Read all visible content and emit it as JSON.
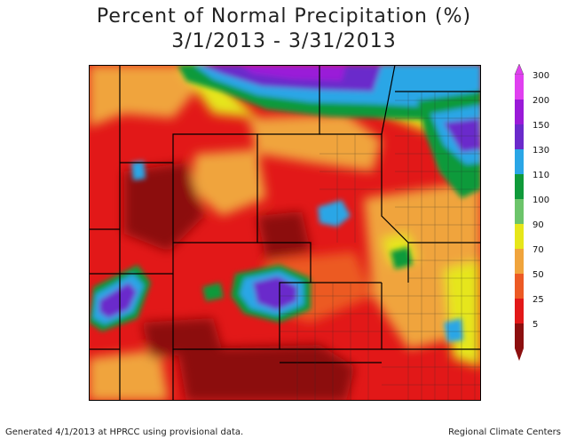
{
  "title": {
    "line1": "Percent of Normal Precipitation (%)",
    "line2": "3/1/2013 - 3/31/2013"
  },
  "legend": {
    "bins": [
      {
        "label": "300",
        "color": "#e040f0"
      },
      {
        "label": "200",
        "color": "#9a1ad8"
      },
      {
        "label": "150",
        "color": "#6a2acb"
      },
      {
        "label": "130",
        "color": "#2aa6e6"
      },
      {
        "label": "110",
        "color": "#0f9a3a"
      },
      {
        "label": "100",
        "color": "#6cc46a"
      },
      {
        "label": "90",
        "color": "#e6e61a"
      },
      {
        "label": "70",
        "color": "#f0a43c"
      },
      {
        "label": "50",
        "color": "#ec5a24"
      },
      {
        "label": "25",
        "color": "#e21818"
      },
      {
        "label": "5",
        "color": "#8c0f0f"
      }
    ]
  },
  "footer": {
    "left": "Generated 4/1/2013 at HPRCC using provisional data.",
    "right": "Regional Climate Centers"
  },
  "colors": {
    "very_dry": "#8c0f0f",
    "dry": "#e21818",
    "below": "#ec5a24",
    "near": "#f0a43c",
    "normal": "#e6e61a",
    "wet": "#6cc46a",
    "wetter": "#0f9a3a",
    "very_wet": "#2aa6e6",
    "extreme": "#6a2acb",
    "highest": "#9a1ad8"
  }
}
